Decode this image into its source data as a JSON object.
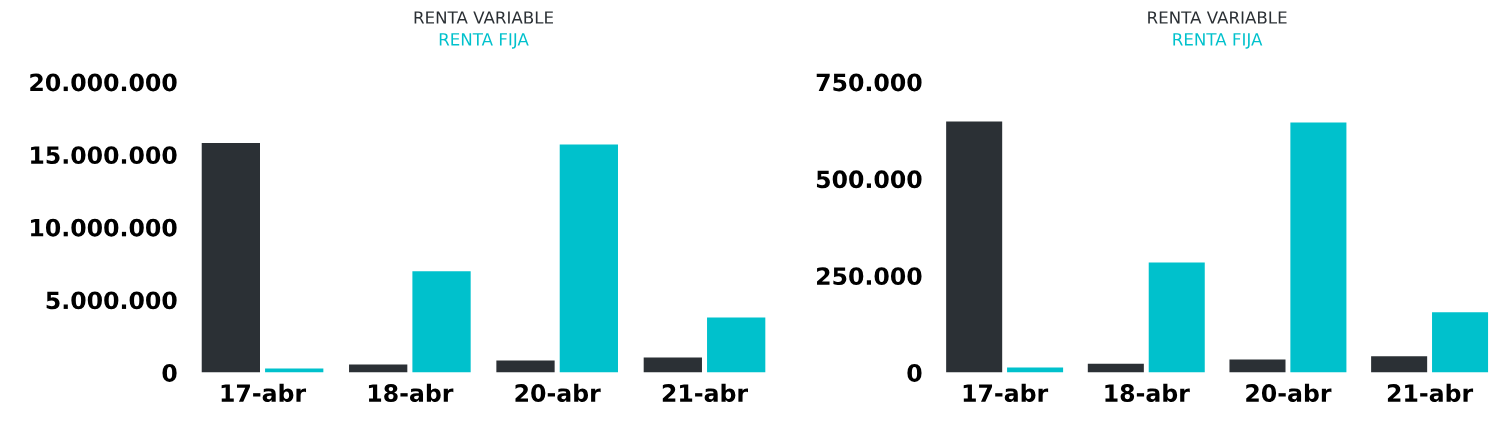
{
  "chart_data": [
    {
      "type": "bar",
      "categories": [
        "17-abr",
        "18-abr",
        "20-abr",
        "21-abr"
      ],
      "legend": "top",
      "grid": false,
      "series": [
        {
          "name": "RENTA VARIABLE",
          "color": "#2b3035",
          "values": [
            15800000,
            550000,
            830000,
            1030000
          ]
        },
        {
          "name": "RENTA FIJA",
          "color": "#00c1cc",
          "values": [
            280000,
            6970000,
            15700000,
            3800000
          ]
        }
      ],
      "ylim": [
        0,
        20000000
      ],
      "yticks": [
        0,
        {
          "value": 5000000,
          "label": "5.000.000"
        },
        {
          "value": 10000000,
          "label": "10.000.000"
        },
        {
          "value": 15000000,
          "label": "15.000.000"
        },
        {
          "value": 20000000,
          "label": "20.000.000"
        }
      ]
    },
    {
      "type": "bar",
      "categories": [
        "17-abr",
        "18-abr",
        "20-abr",
        "21-abr"
      ],
      "legend": "top",
      "grid": false,
      "series": [
        {
          "name": "RENTA VARIABLE",
          "color": "#2b3035",
          "values": [
            648000,
            23000,
            34000,
            42000
          ]
        },
        {
          "name": "RENTA FIJA",
          "color": "#00c1cc",
          "values": [
            13000,
            284000,
            646000,
            156000
          ]
        }
      ],
      "ylim": [
        0,
        750000
      ],
      "yticks": [
        0,
        {
          "value": 250000,
          "label": "250.000"
        },
        {
          "value": 500000,
          "label": "500.000"
        },
        {
          "value": 750000,
          "label": "750.000"
        }
      ]
    }
  ]
}
